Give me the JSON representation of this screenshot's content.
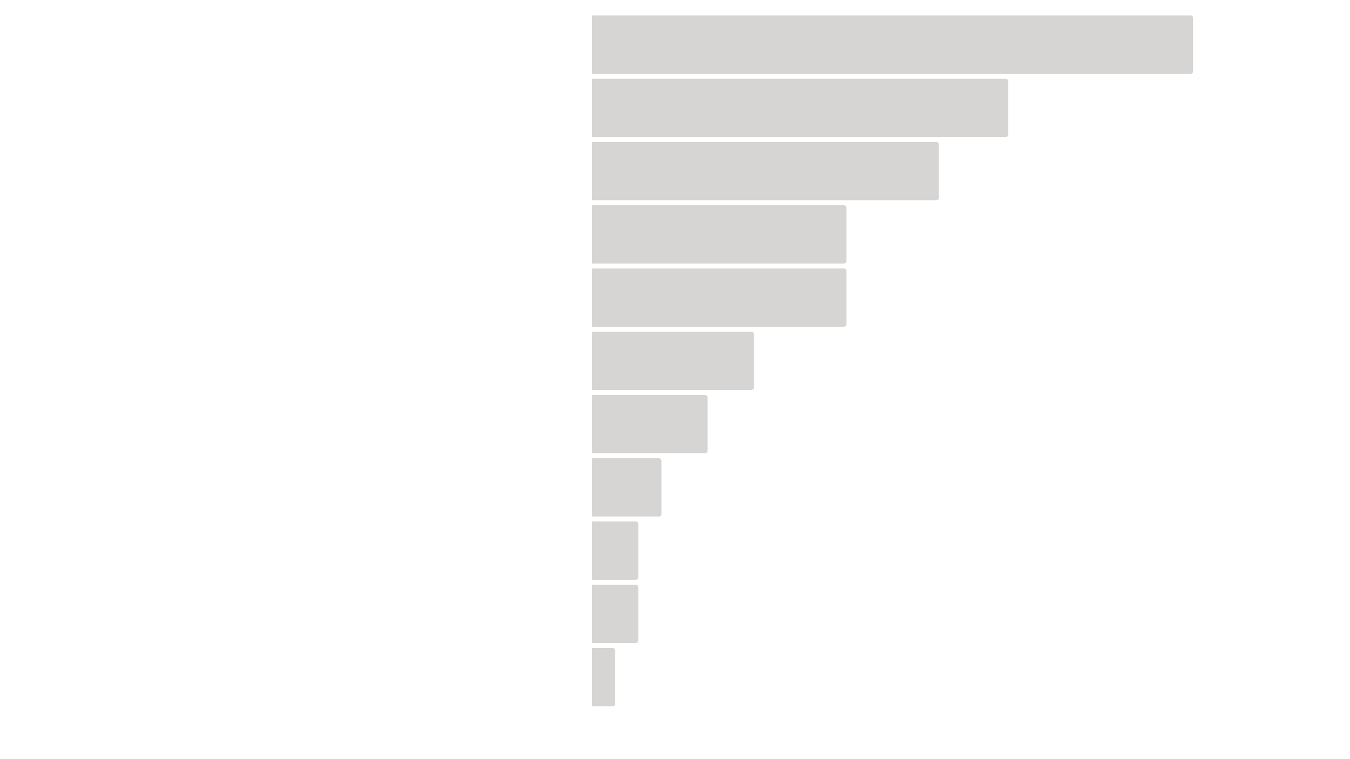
{
  "chart_data": {
    "type": "bar",
    "orientation": "horizontal",
    "bar_color": "#d6d5d3",
    "background": "#ffffff",
    "values": [
      26,
      18,
      15,
      11,
      11,
      7,
      5,
      3,
      2,
      2,
      1
    ],
    "xlim": [
      0,
      26
    ],
    "grid": false,
    "legend": "none"
  }
}
